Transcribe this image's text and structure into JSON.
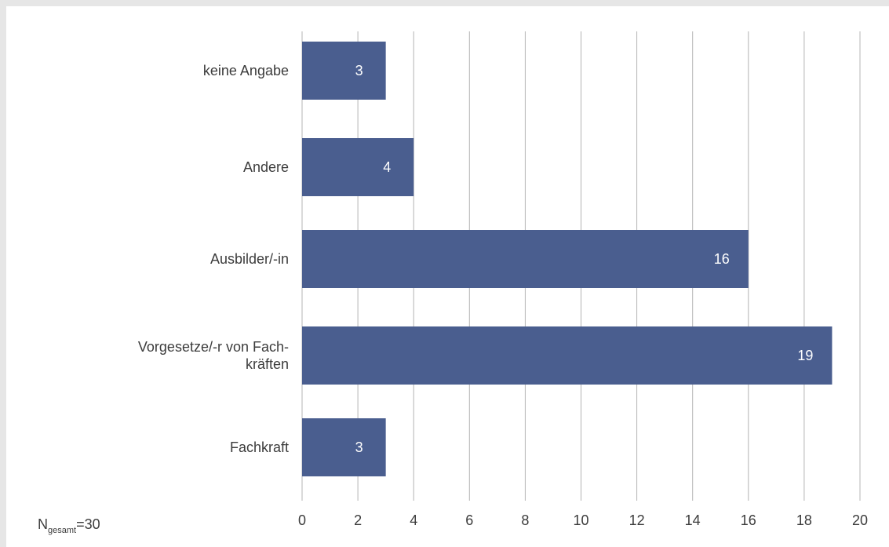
{
  "chart_data": {
    "type": "bar",
    "orientation": "horizontal",
    "categories": [
      "keine Angabe",
      "Andere",
      "Ausbilder/-in",
      "Vorgesetze/-r von Fach-kräften",
      "Fachkraft"
    ],
    "category_lines": [
      [
        "keine Angabe"
      ],
      [
        "Andere"
      ],
      [
        "Ausbilder/-in"
      ],
      [
        "Vorgesetze/-r von Fach-",
        "kräften"
      ],
      [
        "Fachkraft"
      ]
    ],
    "values": [
      3,
      4,
      16,
      19,
      3
    ],
    "xlim": [
      0,
      20
    ],
    "xticks": [
      0,
      2,
      4,
      6,
      8,
      10,
      12,
      14,
      16,
      18,
      20
    ],
    "grid": "vertical",
    "bar_color": "#4a5e8f",
    "gridline_color": "#b4b4b4"
  },
  "footnote": {
    "prefix": "N",
    "subscript": "gesamt",
    "suffix": "=30"
  }
}
